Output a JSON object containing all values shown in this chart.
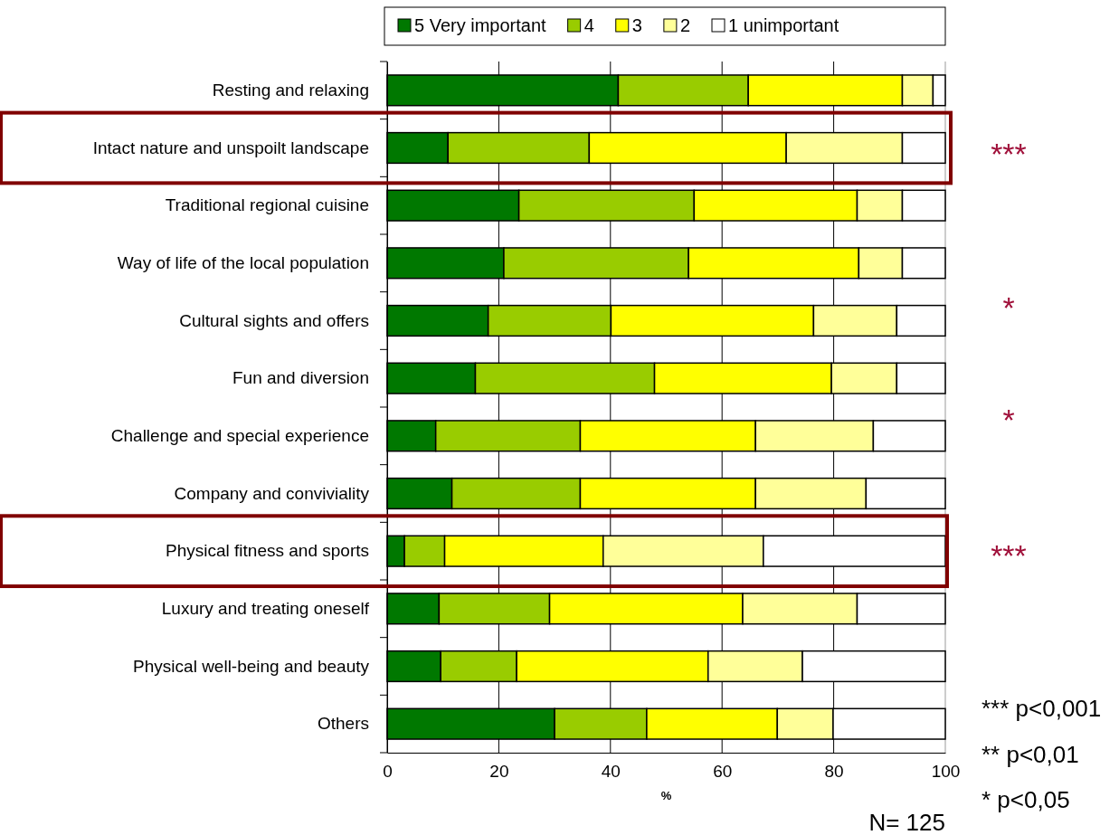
{
  "chart_data": {
    "type": "bar",
    "orientation": "horizontal",
    "stacked": true,
    "categories": [
      "Resting and relaxing",
      "Intact nature and unspoilt landscape",
      "Traditional regional cuisine",
      "Way of life of the local population",
      "Cultural sights and offers",
      "Fun and diversion",
      "Challenge and special experience",
      "Company and conviviality",
      "Physical fitness and sports",
      "Luxury and treating oneself",
      "Physical well-being and beauty",
      "Others"
    ],
    "series": [
      {
        "name": "5 Very important",
        "color": "#007800",
        "values": [
          41.4,
          10.9,
          23.6,
          20.9,
          18.1,
          15.8,
          8.7,
          11.6,
          3.1,
          9.3,
          9.6,
          30.0
        ]
      },
      {
        "name": "4",
        "color": "#99cc00",
        "values": [
          23.3,
          25.3,
          31.4,
          33.1,
          22.0,
          32.1,
          25.9,
          23.0,
          7.2,
          19.8,
          13.6,
          16.5
        ]
      },
      {
        "name": "3",
        "color": "#ffff00",
        "values": [
          27.6,
          35.3,
          29.2,
          30.5,
          36.3,
          31.7,
          31.4,
          31.4,
          28.4,
          34.6,
          34.3,
          23.4
        ]
      },
      {
        "name": "2",
        "color": "#ffff99",
        "values": [
          5.5,
          20.8,
          8.1,
          7.8,
          14.9,
          11.7,
          21.1,
          19.8,
          28.7,
          20.5,
          16.9,
          10.0
        ]
      },
      {
        "name": "1 unimportant",
        "color": "#ffffff",
        "values": [
          2.2,
          7.7,
          7.7,
          7.7,
          8.7,
          8.7,
          12.9,
          14.2,
          32.6,
          15.8,
          25.6,
          20.1
        ]
      }
    ],
    "xlim": [
      0,
      100
    ],
    "xticks": [
      0,
      20,
      40,
      60,
      80,
      100
    ],
    "xlabel": "%",
    "grid": "x",
    "legend": "top",
    "annotations": [
      "***",
      "*",
      "*",
      "***",
      "*** p<0,001",
      "** p<0,01",
      "* p<0,05",
      "N= 125"
    ]
  }
}
